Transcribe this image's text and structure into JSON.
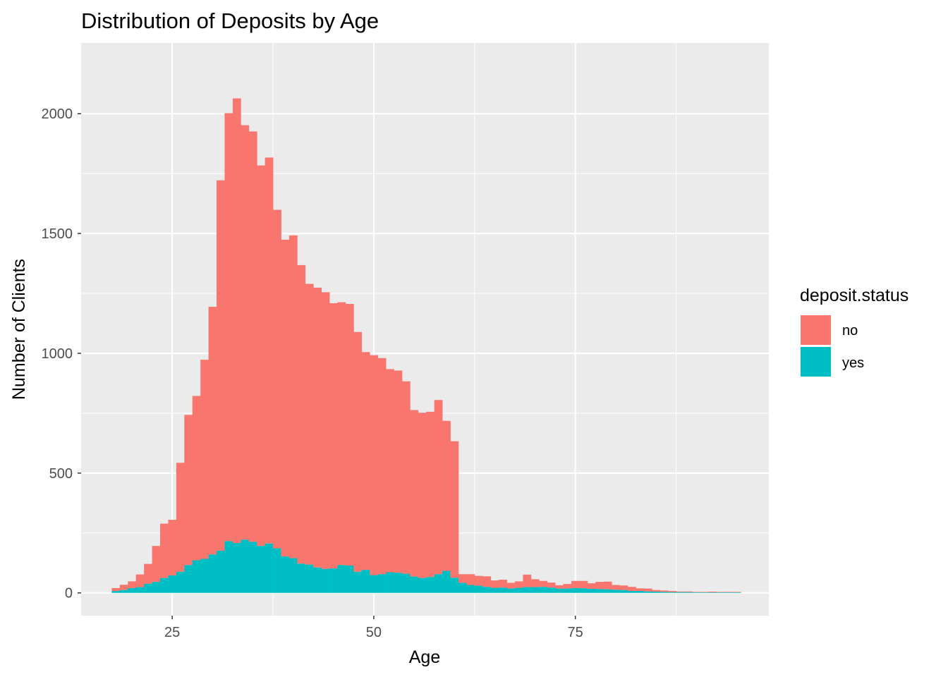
{
  "chart_data": {
    "type": "bar",
    "title": "Distribution of Deposits by Age",
    "xlabel": "Age",
    "ylabel": "Number of Clients",
    "xlim": [
      13.7,
      99
    ],
    "ylim": [
      -95,
      2295
    ],
    "x_ticks": [
      25,
      50,
      75
    ],
    "x_minor_ticks": [
      37.5,
      62.5,
      87.5
    ],
    "y_ticks": [
      0,
      500,
      1000,
      1500,
      2000
    ],
    "y_minor_ticks": [
      250,
      750,
      1250,
      1750
    ],
    "grid": true,
    "stacked": true,
    "bin_width": 1,
    "legend": {
      "title": "deposit.status",
      "position": "right"
    },
    "categories": [
      18,
      19,
      20,
      21,
      22,
      23,
      24,
      25,
      26,
      27,
      28,
      29,
      30,
      31,
      32,
      33,
      34,
      35,
      36,
      37,
      38,
      39,
      40,
      41,
      42,
      43,
      44,
      45,
      46,
      47,
      48,
      49,
      50,
      51,
      52,
      53,
      54,
      55,
      56,
      57,
      58,
      59,
      60,
      61,
      62,
      63,
      64,
      65,
      66,
      67,
      68,
      69,
      70,
      71,
      72,
      73,
      74,
      75,
      76,
      77,
      78,
      79,
      80,
      81,
      82,
      83,
      84,
      85,
      86,
      87,
      88,
      89,
      90,
      91,
      92,
      93,
      94,
      95
    ],
    "series": [
      {
        "name": "no",
        "color": "#F8766D",
        "values": [
          12,
          22,
          28,
          53,
          83,
          150,
          227,
          232,
          455,
          627,
          686,
          831,
          1034,
          1546,
          1786,
          1856,
          1730,
          1713,
          1588,
          1611,
          1413,
          1322,
          1347,
          1246,
          1172,
          1168,
          1155,
          1107,
          1097,
          1092,
          1001,
          909,
          918,
          902,
          848,
          844,
          803,
          695,
          690,
          690,
          727,
          626,
          570,
          36,
          45,
          41,
          44,
          31,
          33,
          24,
          27,
          52,
          33,
          25,
          21,
          14,
          19,
          30,
          31,
          23,
          30,
          32,
          20,
          19,
          17,
          11,
          12,
          7,
          6,
          5,
          3,
          3,
          2,
          2,
          3,
          2,
          2,
          2
        ],
        "color_note": "values are the no-counts; total bar height = no + yes"
      },
      {
        "name": "yes",
        "color": "#00BFC4",
        "values": [
          8,
          12,
          20,
          24,
          38,
          46,
          62,
          73,
          88,
          116,
          136,
          142,
          160,
          176,
          216,
          208,
          222,
          213,
          196,
          206,
          186,
          152,
          145,
          122,
          118,
          106,
          100,
          102,
          116,
          114,
          88,
          96,
          74,
          78,
          86,
          84,
          80,
          68,
          62,
          66,
          78,
          92,
          63,
          42,
          33,
          30,
          25,
          21,
          22,
          18,
          21,
          24,
          24,
          25,
          22,
          18,
          18,
          20,
          19,
          17,
          16,
          15,
          13,
          12,
          8,
          8,
          6,
          5,
          4,
          3,
          3,
          3,
          2,
          2,
          2,
          2,
          2,
          2
        ]
      }
    ]
  }
}
